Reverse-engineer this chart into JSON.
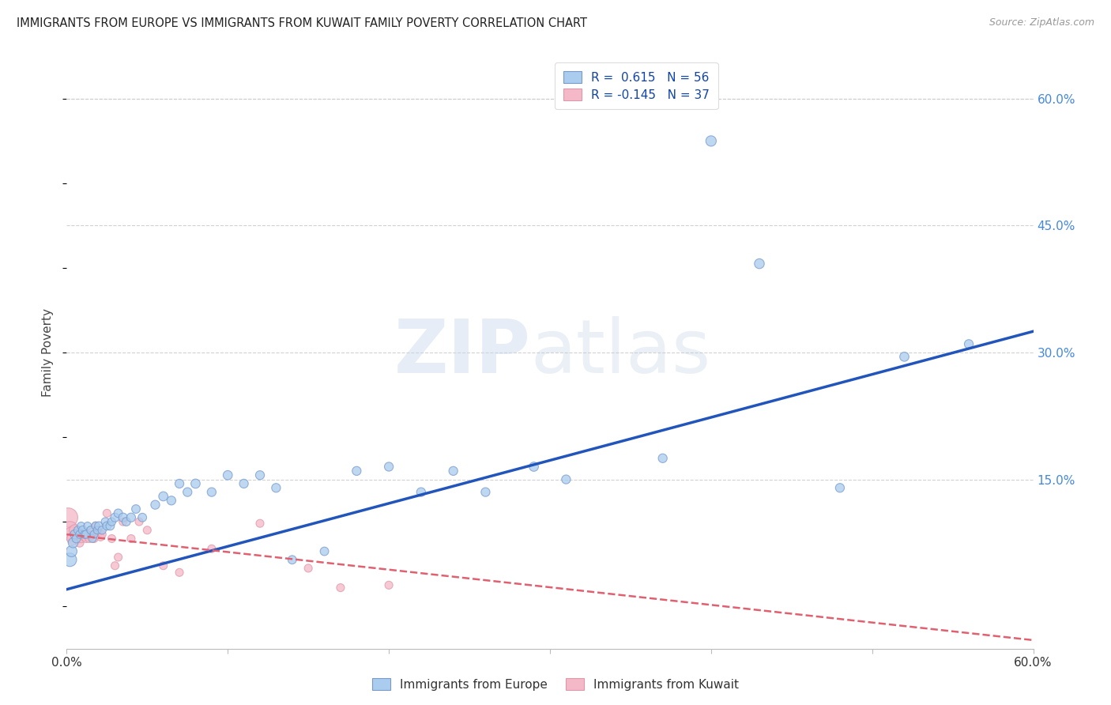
{
  "title": "IMMIGRANTS FROM EUROPE VS IMMIGRANTS FROM KUWAIT FAMILY POVERTY CORRELATION CHART",
  "source": "Source: ZipAtlas.com",
  "ylabel": "Family Poverty",
  "right_yticks": [
    "60.0%",
    "45.0%",
    "30.0%",
    "15.0%"
  ],
  "right_ytick_vals": [
    0.6,
    0.45,
    0.3,
    0.15
  ],
  "xlim": [
    0.0,
    0.6
  ],
  "ylim": [
    -0.05,
    0.65
  ],
  "legend1_label": "R =  0.615   N = 56",
  "legend2_label": "R = -0.145   N = 37",
  "legend1_color": "#aaccee",
  "legend2_color": "#f5b8c8",
  "blue_line_color": "#2255bb",
  "pink_line_color": "#e06070",
  "watermark_zip": "ZIP",
  "watermark_atlas": "atlas",
  "blue_line_x0": 0.0,
  "blue_line_y0": 0.02,
  "blue_line_x1": 0.6,
  "blue_line_y1": 0.325,
  "pink_line_x0": 0.0,
  "pink_line_y0": 0.085,
  "pink_line_x1": 0.6,
  "pink_line_y1": -0.04,
  "blue_x": [
    0.002,
    0.003,
    0.004,
    0.005,
    0.006,
    0.007,
    0.008,
    0.009,
    0.01,
    0.011,
    0.012,
    0.013,
    0.015,
    0.016,
    0.017,
    0.018,
    0.019,
    0.02,
    0.022,
    0.024,
    0.025,
    0.027,
    0.028,
    0.03,
    0.032,
    0.035,
    0.037,
    0.04,
    0.043,
    0.047,
    0.055,
    0.06,
    0.065,
    0.07,
    0.075,
    0.08,
    0.09,
    0.1,
    0.11,
    0.12,
    0.13,
    0.14,
    0.16,
    0.18,
    0.2,
    0.22,
    0.24,
    0.26,
    0.29,
    0.31,
    0.37,
    0.4,
    0.43,
    0.48,
    0.52,
    0.56
  ],
  "blue_y": [
    0.055,
    0.065,
    0.075,
    0.085,
    0.08,
    0.09,
    0.085,
    0.095,
    0.09,
    0.085,
    0.085,
    0.095,
    0.09,
    0.08,
    0.085,
    0.095,
    0.09,
    0.095,
    0.09,
    0.1,
    0.095,
    0.095,
    0.1,
    0.105,
    0.11,
    0.105,
    0.1,
    0.105,
    0.115,
    0.105,
    0.12,
    0.13,
    0.125,
    0.145,
    0.135,
    0.145,
    0.135,
    0.155,
    0.145,
    0.155,
    0.14,
    0.055,
    0.065,
    0.16,
    0.165,
    0.135,
    0.16,
    0.135,
    0.165,
    0.15,
    0.175,
    0.55,
    0.405,
    0.14,
    0.295,
    0.31
  ],
  "blue_sizes": [
    150,
    100,
    80,
    70,
    60,
    55,
    50,
    50,
    60,
    50,
    55,
    50,
    55,
    50,
    50,
    55,
    50,
    60,
    55,
    55,
    60,
    60,
    55,
    65,
    60,
    65,
    60,
    65,
    60,
    60,
    65,
    70,
    65,
    65,
    65,
    70,
    65,
    70,
    65,
    65,
    65,
    60,
    60,
    65,
    65,
    65,
    65,
    65,
    70,
    65,
    65,
    90,
    80,
    65,
    70,
    65
  ],
  "pink_x": [
    0.001,
    0.002,
    0.003,
    0.004,
    0.005,
    0.006,
    0.007,
    0.008,
    0.009,
    0.01,
    0.011,
    0.012,
    0.013,
    0.014,
    0.015,
    0.016,
    0.017,
    0.018,
    0.019,
    0.02,
    0.021,
    0.022,
    0.025,
    0.028,
    0.03,
    0.032,
    0.035,
    0.04,
    0.045,
    0.05,
    0.06,
    0.07,
    0.09,
    0.12,
    0.15,
    0.17,
    0.2
  ],
  "pink_y": [
    0.105,
    0.09,
    0.085,
    0.08,
    0.09,
    0.085,
    0.08,
    0.075,
    0.08,
    0.085,
    0.082,
    0.08,
    0.085,
    0.08,
    0.09,
    0.085,
    0.08,
    0.095,
    0.088,
    0.088,
    0.082,
    0.085,
    0.11,
    0.08,
    0.048,
    0.058,
    0.1,
    0.08,
    0.1,
    0.09,
    0.048,
    0.04,
    0.068,
    0.098,
    0.045,
    0.022,
    0.025
  ],
  "pink_sizes": [
    300,
    250,
    180,
    130,
    100,
    80,
    65,
    60,
    58,
    55,
    53,
    52,
    52,
    52,
    55,
    52,
    52,
    55,
    52,
    55,
    52,
    52,
    52,
    52,
    52,
    52,
    52,
    52,
    52,
    52,
    52,
    52,
    52,
    52,
    52,
    52,
    52
  ],
  "grid_color": "#cccccc",
  "background_color": "#ffffff",
  "legend_bottom_blue": "Immigrants from Europe",
  "legend_bottom_pink": "Immigrants from Kuwait"
}
